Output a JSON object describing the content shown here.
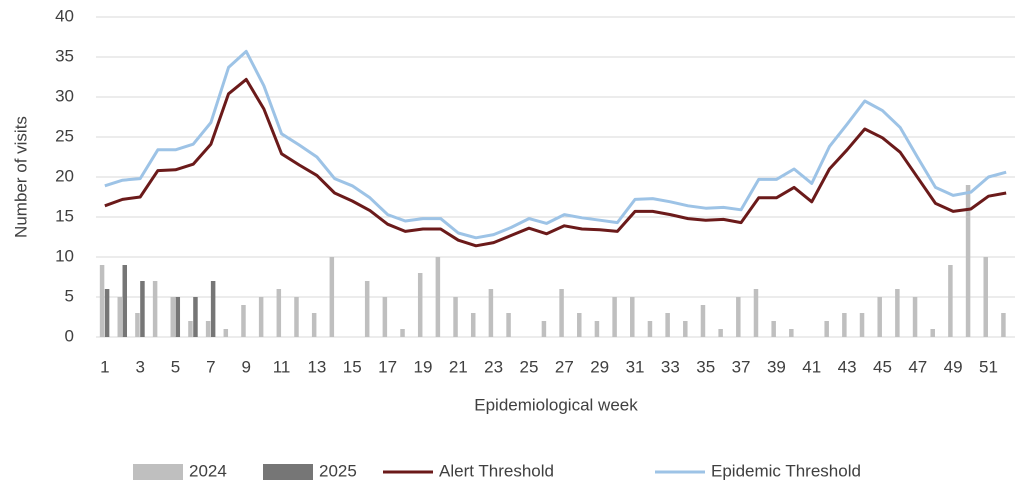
{
  "chart_data": {
    "type": "combo",
    "y_label": "Number of visits",
    "x_label": "Epidemiological week",
    "categories": [
      1,
      null,
      3,
      null,
      5,
      null,
      7,
      null,
      9,
      null,
      11,
      null,
      13,
      null,
      15,
      null,
      17,
      null,
      19,
      null,
      21,
      null,
      23,
      null,
      25,
      null,
      27,
      null,
      29,
      null,
      31,
      null,
      33,
      null,
      35,
      null,
      37,
      null,
      39,
      null,
      41,
      null,
      43,
      null,
      45,
      null,
      47,
      null,
      49,
      null,
      51,
      null
    ],
    "ylim": [
      0,
      40
    ],
    "yticks": [
      0,
      5,
      10,
      15,
      20,
      25,
      30,
      35,
      40
    ],
    "grid": true,
    "legend": "bottom",
    "series": [
      {
        "name": "2024",
        "type": "bar",
        "color": "#bfbfbf",
        "values": [
          9,
          5,
          3,
          7,
          5,
          2,
          2,
          1,
          4,
          5,
          6,
          5,
          3,
          10,
          0,
          7,
          5,
          1,
          8,
          10,
          5,
          3,
          6,
          3,
          0,
          2,
          6,
          3,
          2,
          5,
          5,
          2,
          3,
          2,
          4,
          1,
          5,
          6,
          2,
          1,
          0,
          2,
          3,
          3,
          5,
          6,
          5,
          1,
          9,
          19,
          10,
          3
        ]
      },
      {
        "name": "2025",
        "type": "bar",
        "color": "#767676",
        "values": [
          6,
          9,
          7,
          0,
          5,
          5,
          7,
          null,
          null,
          null,
          null,
          null,
          null,
          null,
          null,
          null,
          null,
          null,
          null,
          null,
          null,
          null,
          null,
          null,
          null,
          null,
          null,
          null,
          null,
          null,
          null,
          null,
          null,
          null,
          null,
          null,
          null,
          null,
          null,
          null,
          null,
          null,
          null,
          null,
          null,
          null,
          null,
          null,
          null,
          null,
          null,
          null
        ]
      },
      {
        "name": "Alert Threshold",
        "type": "line",
        "color": "#6b1a1a",
        "values": [
          16.4,
          17.2,
          17.5,
          20.8,
          20.9,
          21.6,
          24.1,
          30.4,
          32.2,
          28.5,
          22.9,
          21.5,
          20.2,
          18.0,
          17.0,
          15.8,
          14.1,
          13.2,
          13.5,
          13.5,
          12.1,
          11.4,
          11.8,
          12.7,
          13.6,
          12.9,
          13.9,
          13.5,
          13.4,
          13.2,
          15.7,
          15.7,
          15.3,
          14.8,
          14.6,
          14.7,
          14.3,
          17.4,
          17.4,
          18.7,
          16.9,
          21.0,
          23.4,
          26.0,
          24.9,
          23.1,
          19.9,
          16.7,
          15.7,
          16.0,
          17.6,
          18.0
        ]
      },
      {
        "name": "Epidemic Threshold",
        "type": "line",
        "color": "#9dc3e6",
        "values": [
          18.9,
          19.6,
          19.8,
          23.4,
          23.4,
          24.1,
          26.8,
          33.7,
          35.7,
          31.4,
          25.4,
          24.0,
          22.5,
          19.8,
          18.9,
          17.4,
          15.3,
          14.5,
          14.8,
          14.8,
          13.0,
          12.4,
          12.8,
          13.7,
          14.8,
          14.2,
          15.3,
          14.9,
          14.6,
          14.3,
          17.2,
          17.3,
          16.9,
          16.4,
          16.1,
          16.2,
          15.9,
          19.7,
          19.7,
          21.0,
          19.2,
          23.8,
          26.6,
          29.5,
          28.3,
          26.2,
          22.4,
          18.7,
          17.7,
          18.1,
          20.0,
          20.6
        ]
      }
    ]
  }
}
